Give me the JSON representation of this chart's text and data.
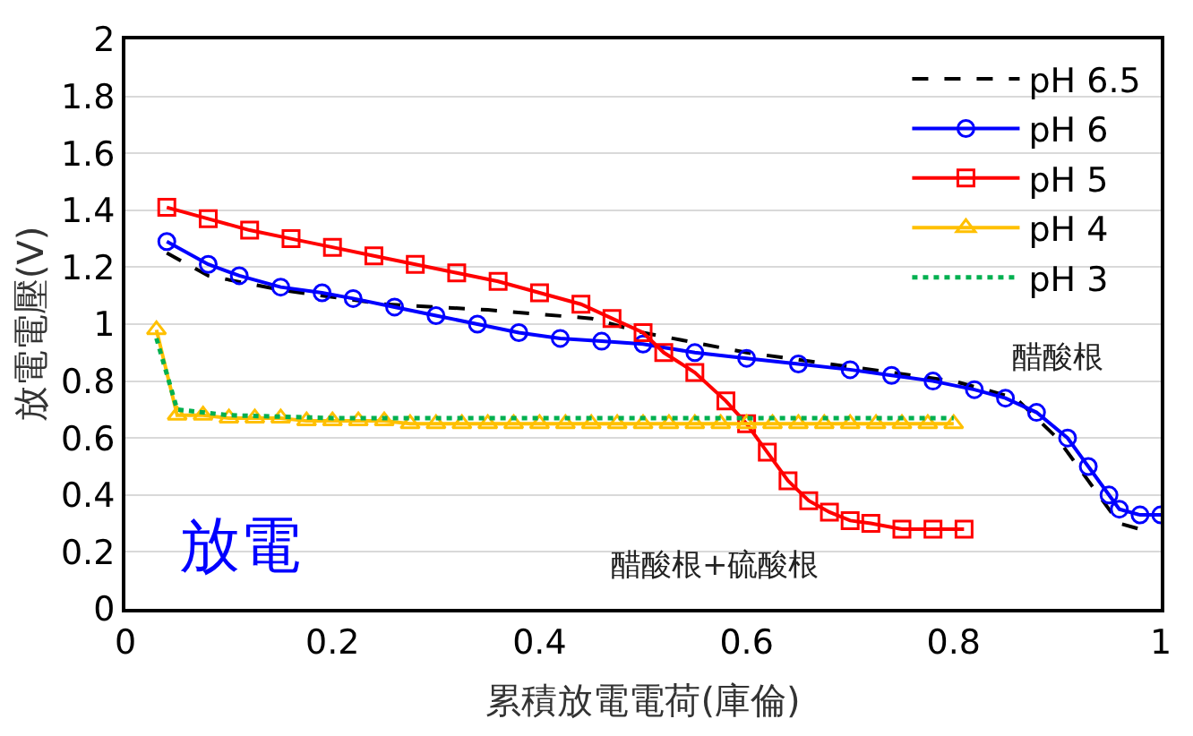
{
  "chart_data": {
    "type": "line",
    "xlabel": "累積放電電荷(庫倫)",
    "ylabel": "放電電壓(V)",
    "xlim": [
      0,
      1
    ],
    "xticks": [
      0,
      0.2,
      0.4,
      0.6,
      0.8,
      1
    ],
    "ylim": [
      0,
      2
    ],
    "yticks": [
      0,
      0.2,
      0.4,
      0.6,
      0.8,
      1,
      1.2,
      1.4,
      1.6,
      1.8,
      2
    ],
    "grid": "y",
    "legend": "top right",
    "annotations": [
      "醋酸根",
      "醋酸根+硫酸根",
      "放電"
    ],
    "series": [
      {
        "name": "pH 6.5",
        "color": "#000000",
        "line_style": "dashed",
        "marker": "none",
        "x": [
          0.04,
          0.08,
          0.15,
          0.25,
          0.35,
          0.45,
          0.5,
          0.6,
          0.7,
          0.8,
          0.86,
          0.9,
          0.93,
          0.96,
          0.98
        ],
        "values": [
          1.25,
          1.17,
          1.12,
          1.07,
          1.05,
          1.02,
          0.97,
          0.9,
          0.85,
          0.8,
          0.74,
          0.6,
          0.45,
          0.3,
          0.28
        ]
      },
      {
        "name": "pH 6",
        "color": "#0000ff",
        "line_style": "solid",
        "marker": "circle",
        "x": [
          0.04,
          0.08,
          0.11,
          0.15,
          0.19,
          0.22,
          0.26,
          0.3,
          0.34,
          0.38,
          0.42,
          0.46,
          0.5,
          0.55,
          0.6,
          0.65,
          0.7,
          0.74,
          0.78,
          0.82,
          0.85,
          0.88,
          0.91,
          0.93,
          0.95,
          0.96,
          0.98,
          1.0
        ],
        "values": [
          1.29,
          1.21,
          1.17,
          1.13,
          1.11,
          1.09,
          1.06,
          1.03,
          1.0,
          0.97,
          0.95,
          0.94,
          0.93,
          0.9,
          0.88,
          0.86,
          0.84,
          0.82,
          0.8,
          0.77,
          0.74,
          0.69,
          0.6,
          0.5,
          0.4,
          0.35,
          0.33,
          0.33
        ]
      },
      {
        "name": "pH 5",
        "color": "#ff0000",
        "line_style": "solid",
        "marker": "square",
        "x": [
          0.04,
          0.08,
          0.12,
          0.16,
          0.2,
          0.24,
          0.28,
          0.32,
          0.36,
          0.4,
          0.44,
          0.47,
          0.5,
          0.52,
          0.55,
          0.58,
          0.6,
          0.62,
          0.64,
          0.66,
          0.68,
          0.7,
          0.72,
          0.75,
          0.78,
          0.81
        ],
        "values": [
          1.41,
          1.37,
          1.33,
          1.3,
          1.27,
          1.24,
          1.21,
          1.18,
          1.15,
          1.11,
          1.07,
          1.02,
          0.97,
          0.9,
          0.83,
          0.73,
          0.65,
          0.55,
          0.45,
          0.38,
          0.34,
          0.31,
          0.3,
          0.28,
          0.28,
          0.28
        ]
      },
      {
        "name": "pH 4",
        "color": "#ffc000",
        "line_style": "solid",
        "marker": "triangle",
        "x": [
          0.03,
          0.05,
          0.075,
          0.1,
          0.125,
          0.15,
          0.175,
          0.2,
          0.225,
          0.25,
          0.275,
          0.3,
          0.325,
          0.35,
          0.375,
          0.4,
          0.425,
          0.45,
          0.475,
          0.5,
          0.525,
          0.55,
          0.575,
          0.6,
          0.625,
          0.65,
          0.675,
          0.7,
          0.725,
          0.75,
          0.775,
          0.8
        ],
        "values": [
          0.98,
          0.68,
          0.68,
          0.67,
          0.67,
          0.67,
          0.66,
          0.66,
          0.66,
          0.66,
          0.65,
          0.65,
          0.65,
          0.65,
          0.65,
          0.65,
          0.65,
          0.65,
          0.65,
          0.65,
          0.65,
          0.65,
          0.65,
          0.65,
          0.65,
          0.65,
          0.65,
          0.65,
          0.65,
          0.65,
          0.65,
          0.65
        ]
      },
      {
        "name": "pH 3",
        "color": "#00b050",
        "line_style": "dotted",
        "marker": "none",
        "x": [
          0.03,
          0.05,
          0.1,
          0.2,
          0.4,
          0.6,
          0.8
        ],
        "values": [
          0.95,
          0.7,
          0.68,
          0.67,
          0.67,
          0.67,
          0.67
        ]
      }
    ]
  }
}
